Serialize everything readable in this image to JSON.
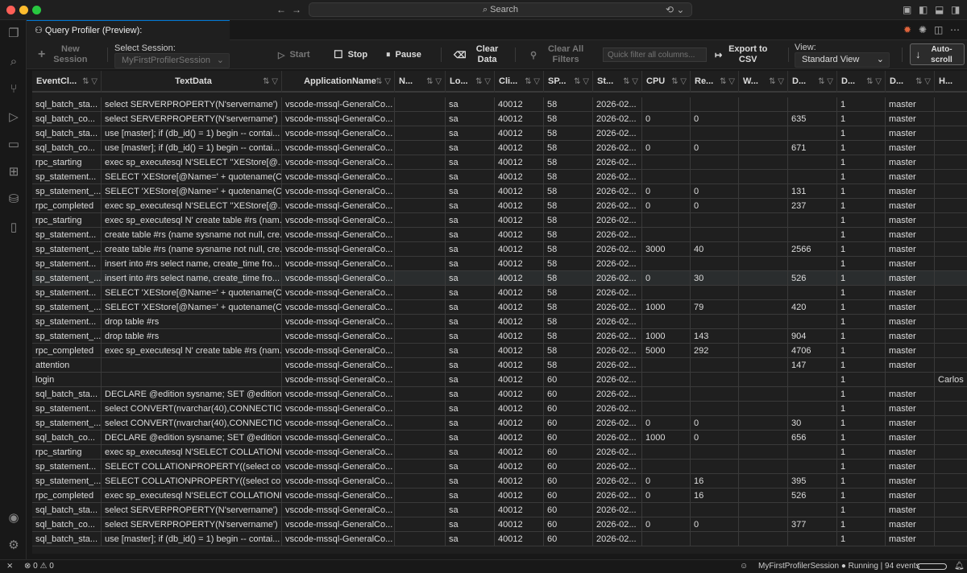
{
  "window": {
    "search": "Search",
    "traffic_colors": [
      "#ff5f57",
      "#febc2e",
      "#28c840"
    ]
  },
  "tab": {
    "title": "Query Profiler (Preview): MyFirstProfilerSession",
    "close": "×"
  },
  "toolbar": {
    "new_session": "New Session",
    "select_session_label": "Select Session:",
    "select_session_value": "MyFirstProfilerSession",
    "start": "Start",
    "stop": "Stop",
    "pause": "Pause",
    "clear_data": "Clear Data",
    "clear_filters": "Clear All Filters",
    "quick_filter_placeholder": "Quick filter all columns...",
    "export": "Export to CSV",
    "view_label": "View:",
    "view_value": "Standard View",
    "autoscroll": "Auto-scroll"
  },
  "columns": [
    "EventCl...",
    "TextData",
    "ApplicationName",
    "N...",
    "Lo...",
    "Cli...",
    "SP...",
    "St...",
    "CPU",
    "Re...",
    "W...",
    "D...",
    "D...",
    "D...",
    "H..."
  ],
  "rows": [
    [
      "sql_batch_sta...",
      "select SERVERPROPERTY(N'servername')",
      "vscode-mssql-GeneralCo...",
      "",
      "sa",
      "40012",
      "58",
      "2026-02...",
      "",
      "",
      "",
      "",
      "1",
      "master",
      ""
    ],
    [
      "sql_batch_co...",
      "select SERVERPROPERTY(N'servername')",
      "vscode-mssql-GeneralCo...",
      "",
      "sa",
      "40012",
      "58",
      "2026-02...",
      "0",
      "0",
      "",
      "635",
      "1",
      "master",
      ""
    ],
    [
      "sql_batch_sta...",
      "use [master]; if (db_id() = 1) begin -- contai...",
      "vscode-mssql-GeneralCo...",
      "",
      "sa",
      "40012",
      "58",
      "2026-02...",
      "",
      "",
      "",
      "",
      "1",
      "master",
      ""
    ],
    [
      "sql_batch_co...",
      "use [master]; if (db_id() = 1) begin -- contai...",
      "vscode-mssql-GeneralCo...",
      "",
      "sa",
      "40012",
      "58",
      "2026-02...",
      "0",
      "0",
      "",
      "671",
      "1",
      "master",
      ""
    ],
    [
      "rpc_starting",
      "exec sp_executesql N'SELECT ''XEStore[@...",
      "vscode-mssql-GeneralCo...",
      "",
      "sa",
      "40012",
      "58",
      "2026-02...",
      "",
      "",
      "",
      "",
      "1",
      "master",
      ""
    ],
    [
      "sp_statement...",
      "SELECT 'XEStore[@Name=' + quotename(C...",
      "vscode-mssql-GeneralCo...",
      "",
      "sa",
      "40012",
      "58",
      "2026-02...",
      "",
      "",
      "",
      "",
      "1",
      "master",
      ""
    ],
    [
      "sp_statement_...",
      "SELECT 'XEStore[@Name=' + quotename(C...",
      "vscode-mssql-GeneralCo...",
      "",
      "sa",
      "40012",
      "58",
      "2026-02...",
      "0",
      "0",
      "",
      "131",
      "1",
      "master",
      ""
    ],
    [
      "rpc_completed",
      "exec sp_executesql N'SELECT ''XEStore[@...",
      "vscode-mssql-GeneralCo...",
      "",
      "sa",
      "40012",
      "58",
      "2026-02...",
      "0",
      "0",
      "",
      "237",
      "1",
      "master",
      ""
    ],
    [
      "rpc_starting",
      "exec sp_executesql N' create table #rs (nam...",
      "vscode-mssql-GeneralCo...",
      "",
      "sa",
      "40012",
      "58",
      "2026-02...",
      "",
      "",
      "",
      "",
      "1",
      "master",
      ""
    ],
    [
      "sp_statement...",
      "create table #rs (name sysname not null, cre...",
      "vscode-mssql-GeneralCo...",
      "",
      "sa",
      "40012",
      "58",
      "2026-02...",
      "",
      "",
      "",
      "",
      "1",
      "master",
      ""
    ],
    [
      "sp_statement_...",
      "create table #rs (name sysname not null, cre...",
      "vscode-mssql-GeneralCo...",
      "",
      "sa",
      "40012",
      "58",
      "2026-02...",
      "3000",
      "40",
      "",
      "2566",
      "1",
      "master",
      ""
    ],
    [
      "sp_statement...",
      "insert into #rs select name, create_time fro...",
      "vscode-mssql-GeneralCo...",
      "",
      "sa",
      "40012",
      "58",
      "2026-02...",
      "",
      "",
      "",
      "",
      "1",
      "master",
      ""
    ],
    [
      "sp_statement_...",
      "insert into #rs select name, create_time fro...",
      "vscode-mssql-GeneralCo...",
      "",
      "sa",
      "40012",
      "58",
      "2026-02...",
      "0",
      "30",
      "",
      "526",
      "1",
      "master",
      ""
    ],
    [
      "sp_statement...",
      "SELECT 'XEStore[@Name=' + quotename(C...",
      "vscode-mssql-GeneralCo...",
      "",
      "sa",
      "40012",
      "58",
      "2026-02...",
      "",
      "",
      "",
      "",
      "1",
      "master",
      ""
    ],
    [
      "sp_statement_...",
      "SELECT 'XEStore[@Name=' + quotename(C...",
      "vscode-mssql-GeneralCo...",
      "",
      "sa",
      "40012",
      "58",
      "2026-02...",
      "1000",
      "79",
      "",
      "420",
      "1",
      "master",
      ""
    ],
    [
      "sp_statement...",
      "drop table #rs",
      "vscode-mssql-GeneralCo...",
      "",
      "sa",
      "40012",
      "58",
      "2026-02...",
      "",
      "",
      "",
      "",
      "1",
      "master",
      ""
    ],
    [
      "sp_statement_...",
      "drop table #rs",
      "vscode-mssql-GeneralCo...",
      "",
      "sa",
      "40012",
      "58",
      "2026-02...",
      "1000",
      "143",
      "",
      "904",
      "1",
      "master",
      ""
    ],
    [
      "rpc_completed",
      "exec sp_executesql N' create table #rs (nam...",
      "vscode-mssql-GeneralCo...",
      "",
      "sa",
      "40012",
      "58",
      "2026-02...",
      "5000",
      "292",
      "",
      "4706",
      "1",
      "master",
      ""
    ],
    [
      "attention",
      "",
      "vscode-mssql-GeneralCo...",
      "",
      "sa",
      "40012",
      "58",
      "2026-02...",
      "",
      "",
      "",
      "147",
      "1",
      "master",
      ""
    ],
    [
      "login",
      "",
      "vscode-mssql-GeneralCo...",
      "",
      "sa",
      "40012",
      "60",
      "2026-02...",
      "",
      "",
      "",
      "",
      "1",
      "",
      "Carlos"
    ],
    [
      "sql_batch_sta...",
      "DECLARE @edition sysname; SET @edition ...",
      "vscode-mssql-GeneralCo...",
      "",
      "sa",
      "40012",
      "60",
      "2026-02...",
      "",
      "",
      "",
      "",
      "1",
      "master",
      ""
    ],
    [
      "sp_statement...",
      "select CONVERT(nvarchar(40),CONNECTIO...",
      "vscode-mssql-GeneralCo...",
      "",
      "sa",
      "40012",
      "60",
      "2026-02...",
      "",
      "",
      "",
      "",
      "1",
      "master",
      ""
    ],
    [
      "sp_statement_...",
      "select CONVERT(nvarchar(40),CONNECTIO...",
      "vscode-mssql-GeneralCo...",
      "",
      "sa",
      "40012",
      "60",
      "2026-02...",
      "0",
      "0",
      "",
      "30",
      "1",
      "master",
      ""
    ],
    [
      "sql_batch_co...",
      "DECLARE @edition sysname; SET @edition ...",
      "vscode-mssql-GeneralCo...",
      "",
      "sa",
      "40012",
      "60",
      "2026-02...",
      "1000",
      "0",
      "",
      "656",
      "1",
      "master",
      ""
    ],
    [
      "rpc_starting",
      "exec sp_executesql N'SELECT COLLATIONP...",
      "vscode-mssql-GeneralCo...",
      "",
      "sa",
      "40012",
      "60",
      "2026-02...",
      "",
      "",
      "",
      "",
      "1",
      "master",
      ""
    ],
    [
      "sp_statement...",
      "SELECT COLLATIONPROPERTY((select coll...",
      "vscode-mssql-GeneralCo...",
      "",
      "sa",
      "40012",
      "60",
      "2026-02...",
      "",
      "",
      "",
      "",
      "1",
      "master",
      ""
    ],
    [
      "sp_statement_...",
      "SELECT COLLATIONPROPERTY((select coll...",
      "vscode-mssql-GeneralCo...",
      "",
      "sa",
      "40012",
      "60",
      "2026-02...",
      "0",
      "16",
      "",
      "395",
      "1",
      "master",
      ""
    ],
    [
      "rpc_completed",
      "exec sp_executesql N'SELECT COLLATIONP...",
      "vscode-mssql-GeneralCo...",
      "",
      "sa",
      "40012",
      "60",
      "2026-02...",
      "0",
      "16",
      "",
      "526",
      "1",
      "master",
      ""
    ],
    [
      "sql_batch_sta...",
      "select SERVERPROPERTY(N'servername')",
      "vscode-mssql-GeneralCo...",
      "",
      "sa",
      "40012",
      "60",
      "2026-02...",
      "",
      "",
      "",
      "",
      "1",
      "master",
      ""
    ],
    [
      "sql_batch_co...",
      "select SERVERPROPERTY(N'servername')",
      "vscode-mssql-GeneralCo...",
      "",
      "sa",
      "40012",
      "60",
      "2026-02...",
      "0",
      "0",
      "",
      "377",
      "1",
      "master",
      ""
    ],
    [
      "sql_batch_sta...",
      "use [master]; if (db_id() = 1) begin -- contai...",
      "vscode-mssql-GeneralCo...",
      "",
      "sa",
      "40012",
      "60",
      "2026-02...",
      "",
      "",
      "",
      "",
      "1",
      "master",
      ""
    ]
  ],
  "selected_row": 12,
  "status": {
    "errors": "0",
    "warnings": "0",
    "session": "MyFirstProfilerSession",
    "state": "Running | 94 events"
  }
}
